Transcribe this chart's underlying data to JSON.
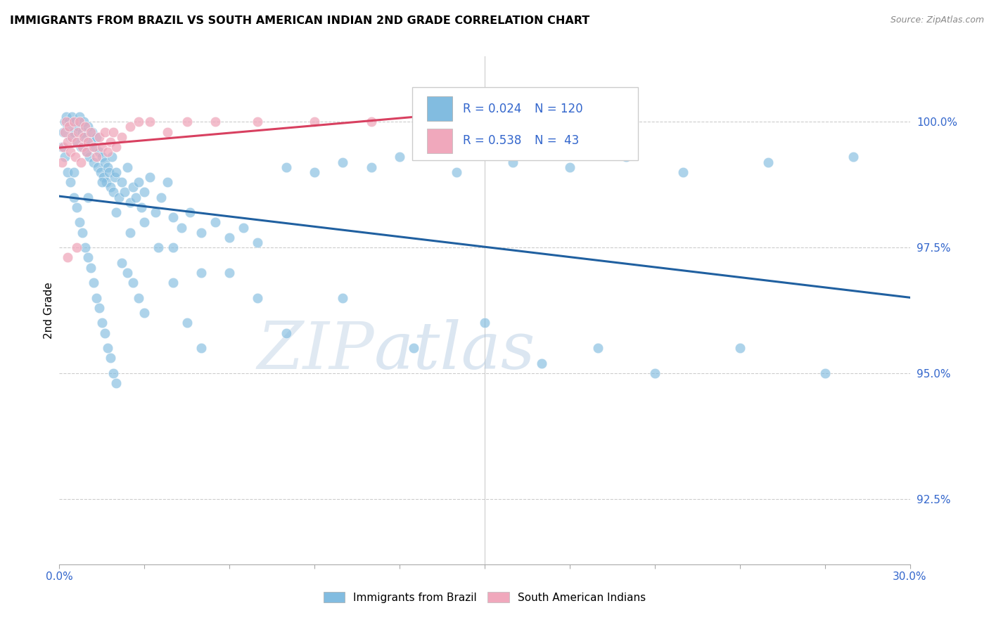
{
  "title": "IMMIGRANTS FROM BRAZIL VS SOUTH AMERICAN INDIAN 2ND GRADE CORRELATION CHART",
  "source": "Source: ZipAtlas.com",
  "ylabel": "2nd Grade",
  "ytick_values": [
    92.5,
    95.0,
    97.5,
    100.0
  ],
  "xlim": [
    0.0,
    30.0
  ],
  "ylim": [
    91.2,
    101.3
  ],
  "legend_blue_label": "Immigrants from Brazil",
  "legend_pink_label": "South American Indians",
  "r_blue": 0.024,
  "n_blue": 120,
  "r_pink": 0.538,
  "n_pink": 43,
  "blue_color": "#82bce0",
  "pink_color": "#f0a8bc",
  "blue_line_color": "#2060a0",
  "pink_line_color": "#d84060",
  "watermark_zip": "ZIP",
  "watermark_atlas": "atlas",
  "blue_x": [
    0.15,
    0.2,
    0.25,
    0.3,
    0.35,
    0.4,
    0.45,
    0.5,
    0.55,
    0.6,
    0.65,
    0.7,
    0.75,
    0.8,
    0.85,
    0.9,
    0.95,
    1.0,
    1.05,
    1.1,
    1.15,
    1.2,
    1.25,
    1.3,
    1.35,
    1.4,
    1.45,
    1.5,
    1.55,
    1.6,
    1.65,
    1.7,
    1.75,
    1.8,
    1.85,
    1.9,
    1.95,
    2.0,
    2.1,
    2.2,
    2.3,
    2.4,
    2.5,
    2.6,
    2.7,
    2.8,
    2.9,
    3.0,
    3.2,
    3.4,
    3.6,
    3.8,
    4.0,
    4.3,
    4.6,
    5.0,
    5.5,
    6.0,
    6.5,
    7.0,
    8.0,
    9.0,
    10.0,
    11.0,
    12.0,
    14.0,
    16.0,
    18.0,
    20.0,
    22.0,
    25.0,
    28.0,
    0.1,
    0.2,
    0.3,
    0.4,
    0.5,
    0.6,
    0.7,
    0.8,
    0.9,
    1.0,
    1.1,
    1.2,
    1.3,
    1.4,
    1.5,
    1.6,
    1.7,
    1.8,
    1.9,
    2.0,
    2.2,
    2.4,
    2.6,
    2.8,
    3.0,
    3.5,
    4.0,
    4.5,
    5.0,
    6.0,
    7.0,
    8.0,
    10.0,
    12.5,
    15.0,
    17.0,
    19.0,
    21.0,
    24.0,
    27.0,
    0.5,
    1.0,
    1.5,
    2.0,
    2.5,
    3.0,
    4.0,
    5.0
  ],
  "blue_y": [
    99.8,
    100.0,
    100.1,
    99.9,
    100.0,
    99.7,
    100.1,
    99.8,
    100.0,
    99.6,
    99.9,
    100.1,
    99.5,
    99.8,
    100.0,
    99.7,
    99.4,
    99.9,
    99.3,
    99.6,
    99.8,
    99.2,
    99.5,
    99.7,
    99.1,
    99.4,
    99.0,
    99.3,
    98.9,
    99.2,
    98.8,
    99.1,
    99.0,
    98.7,
    99.3,
    98.6,
    98.9,
    99.0,
    98.5,
    98.8,
    98.6,
    99.1,
    98.4,
    98.7,
    98.5,
    98.8,
    98.3,
    98.6,
    98.9,
    98.2,
    98.5,
    98.8,
    98.1,
    97.9,
    98.2,
    97.8,
    98.0,
    97.7,
    97.9,
    97.6,
    99.1,
    99.0,
    99.2,
    99.1,
    99.3,
    99.0,
    99.2,
    99.1,
    99.3,
    99.0,
    99.2,
    99.3,
    99.5,
    99.3,
    99.0,
    98.8,
    98.5,
    98.3,
    98.0,
    97.8,
    97.5,
    97.3,
    97.1,
    96.8,
    96.5,
    96.3,
    96.0,
    95.8,
    95.5,
    95.3,
    95.0,
    94.8,
    97.2,
    97.0,
    96.8,
    96.5,
    96.2,
    97.5,
    96.8,
    96.0,
    95.5,
    97.0,
    96.5,
    95.8,
    96.5,
    95.5,
    96.0,
    95.2,
    95.5,
    95.0,
    95.5,
    95.0,
    99.0,
    98.5,
    98.8,
    98.2,
    97.8,
    98.0,
    97.5,
    97.0
  ],
  "pink_x": [
    0.1,
    0.15,
    0.2,
    0.25,
    0.3,
    0.35,
    0.4,
    0.45,
    0.5,
    0.55,
    0.6,
    0.65,
    0.7,
    0.75,
    0.8,
    0.85,
    0.9,
    0.95,
    1.0,
    1.1,
    1.2,
    1.3,
    1.4,
    1.5,
    1.6,
    1.7,
    1.8,
    1.9,
    2.0,
    2.2,
    2.5,
    2.8,
    3.2,
    3.8,
    4.5,
    5.5,
    7.0,
    9.0,
    11.0,
    14.0,
    17.0,
    0.3,
    0.6
  ],
  "pink_y": [
    99.2,
    99.5,
    99.8,
    100.0,
    99.6,
    99.9,
    99.4,
    99.7,
    100.0,
    99.3,
    99.6,
    99.8,
    100.0,
    99.2,
    99.5,
    99.7,
    99.9,
    99.4,
    99.6,
    99.8,
    99.5,
    99.3,
    99.7,
    99.5,
    99.8,
    99.4,
    99.6,
    99.8,
    99.5,
    99.7,
    99.9,
    100.0,
    100.0,
    99.8,
    100.0,
    100.0,
    100.0,
    100.0,
    100.0,
    100.0,
    100.0,
    97.3,
    97.5
  ]
}
